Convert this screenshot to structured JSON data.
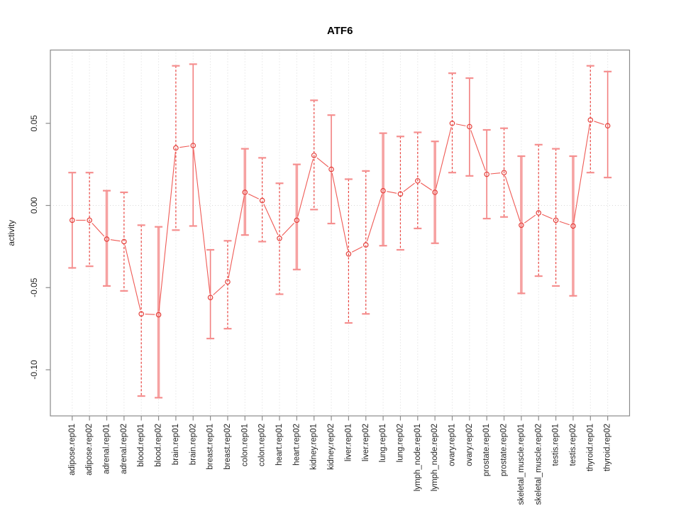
{
  "window": {
    "background": "#ffffff"
  },
  "chart_data": {
    "type": "scatter",
    "subtype": "points-with-error-bars-connected",
    "title": "ATF6",
    "xlabel": "",
    "ylabel": "activity",
    "legend": "none",
    "grid": "vertical dotted gridline per category, dotted horizontal line at y=0",
    "ylim": [
      -0.128,
      0.095
    ],
    "yticks": [
      0.05,
      0.0,
      -0.05,
      -0.1
    ],
    "ytick_labels": [
      "0.05",
      "0.00",
      "-0.05",
      "-0.10"
    ],
    "categories": [
      "adipose.rep01",
      "adipose.rep02",
      "adrenal.rep01",
      "adrenal.rep02",
      "blood.rep01",
      "blood.rep02",
      "brain.rep01",
      "brain.rep02",
      "breast.rep01",
      "breast.rep02",
      "colon.rep01",
      "colon.rep02",
      "heart.rep01",
      "heart.rep02",
      "kidney.rep01",
      "kidney.rep02",
      "liver.rep01",
      "liver.rep02",
      "lung.rep01",
      "lung.rep02",
      "lymph_node.rep01",
      "lymph_node.rep02",
      "ovary.rep01",
      "ovary.rep02",
      "prostate.rep01",
      "prostate.rep02",
      "skeletal_muscle.rep01",
      "skeletal_muscle.rep02",
      "testis.rep01",
      "testis.rep02",
      "thyroid.rep01",
      "thyroid.rep02"
    ],
    "series": [
      {
        "name": "activity",
        "values": [
          -0.009,
          -0.009,
          -0.0205,
          -0.022,
          -0.066,
          -0.0665,
          0.035,
          0.0365,
          -0.056,
          -0.0465,
          0.008,
          0.003,
          -0.02,
          -0.009,
          0.0305,
          0.022,
          -0.0295,
          -0.024,
          0.009,
          0.007,
          0.015,
          0.008,
          0.05,
          0.048,
          0.019,
          0.02,
          -0.012,
          -0.0045,
          -0.009,
          -0.0125,
          0.052,
          0.0485
        ],
        "ci_upper": [
          0.02,
          0.02,
          0.009,
          0.008,
          -0.012,
          -0.013,
          0.085,
          0.086,
          -0.027,
          -0.0215,
          0.0345,
          0.029,
          0.0135,
          0.025,
          0.064,
          0.055,
          0.016,
          0.021,
          0.044,
          0.042,
          0.0445,
          0.039,
          0.0805,
          0.0775,
          0.046,
          0.047,
          0.03,
          0.037,
          0.0345,
          0.03,
          0.085,
          0.0815
        ],
        "ci_lower": [
          -0.038,
          -0.037,
          -0.049,
          -0.052,
          -0.116,
          -0.117,
          -0.015,
          -0.0125,
          -0.081,
          -0.075,
          -0.018,
          -0.022,
          -0.054,
          -0.039,
          -0.0025,
          -0.011,
          -0.0715,
          -0.066,
          -0.0245,
          -0.027,
          -0.014,
          -0.023,
          0.02,
          0.018,
          -0.008,
          -0.007,
          -0.0535,
          -0.043,
          -0.049,
          -0.055,
          0.02,
          0.017
        ],
        "bar_styles": [
          "solid",
          "dashed",
          "thick",
          "dashed",
          "dashed",
          "thick",
          "dashed",
          "solid",
          "solid",
          "dashed",
          "thick",
          "dashed",
          "dashed",
          "thick",
          "dashed",
          "solid",
          "dashed",
          "dashed",
          "thick",
          "dashed",
          "dashed",
          "thick",
          "dashed",
          "solid",
          "solid",
          "dashed",
          "thick",
          "dashed",
          "dashed",
          "thick",
          "dashed",
          "solid"
        ]
      }
    ],
    "colors": {
      "marker": "#e5413c",
      "series_line": "#ef5a55",
      "bar_dashed": "#e9433f",
      "bar_solid": "#f28080",
      "bar_thick": "#f6a2a2",
      "cap": "#f58f8f",
      "grid": "#d9d9d9",
      "axis": "#8a8a8a",
      "text": "#1f1f1f",
      "title": "#000000"
    }
  }
}
